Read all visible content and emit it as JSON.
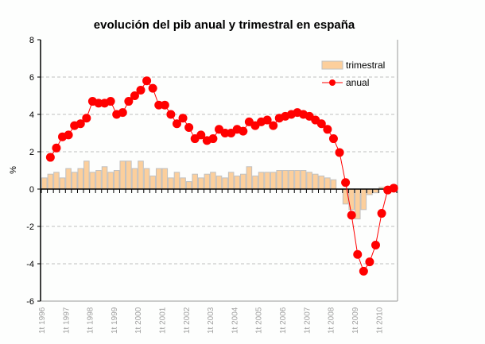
{
  "chart_data": {
    "type": "bar+line",
    "title": "evolución del pib anual y trimestral en españa",
    "xlabel": "",
    "ylabel": "%",
    "ylim": [
      -6,
      8
    ],
    "yticks": [
      8,
      6,
      4,
      2,
      0,
      -2,
      -4,
      -6
    ],
    "grid": "horizontal dashed",
    "legend_position": "top-right",
    "x_tick_labels": [
      "1t 1996",
      "1t 1997",
      "1t 1998",
      "1t 1999",
      "1t 2000",
      "1t 2001",
      "1t 2002",
      "1t 2003",
      "1t 2004",
      "1t 2005",
      "1t 2006",
      "1t 2007",
      "1t 2008",
      "1t 2009",
      "1t 2010"
    ],
    "quarters_per_year": 4,
    "series": [
      {
        "name": "trimestral",
        "type": "bar",
        "color": "#fccf9c",
        "values": [
          0.6,
          0.8,
          0.9,
          0.6,
          1.1,
          0.9,
          1.1,
          1.5,
          0.9,
          1.0,
          1.2,
          0.9,
          1.0,
          1.5,
          1.5,
          1.1,
          1.5,
          1.1,
          0.7,
          1.1,
          1.1,
          0.6,
          0.9,
          0.6,
          0.4,
          0.8,
          0.6,
          0.8,
          0.9,
          0.7,
          0.6,
          0.9,
          0.7,
          0.8,
          1.2,
          0.7,
          0.9,
          0.9,
          0.9,
          1.0,
          1.0,
          1.0,
          1.0,
          1.0,
          0.9,
          0.8,
          0.7,
          0.6,
          0.5,
          0.0,
          -0.8,
          -1.1,
          -1.6,
          -1.1,
          -0.3,
          -0.2,
          0.1,
          0.1,
          0.1
        ]
      },
      {
        "name": "anual",
        "type": "line",
        "color": "#ff0000",
        "values": [
          null,
          1.7,
          2.2,
          2.8,
          2.9,
          3.4,
          3.5,
          3.8,
          4.7,
          4.6,
          4.6,
          4.7,
          4.0,
          4.1,
          4.7,
          5.0,
          5.3,
          5.8,
          5.4,
          4.5,
          4.5,
          4.0,
          3.5,
          3.8,
          3.3,
          2.7,
          2.9,
          2.6,
          2.7,
          3.2,
          3.0,
          3.0,
          3.2,
          3.1,
          3.6,
          3.4,
          3.6,
          3.7,
          3.4,
          3.8,
          3.9,
          4.0,
          4.1,
          4.0,
          3.9,
          3.7,
          3.5,
          3.2,
          2.7,
          1.96,
          0.35,
          -1.4,
          -3.5,
          -4.4,
          -3.9,
          -3.0,
          -1.3,
          -0.05,
          0.05
        ]
      }
    ]
  }
}
